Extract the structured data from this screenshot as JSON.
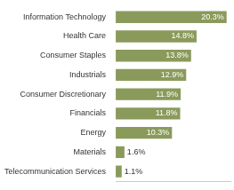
{
  "chart_data": {
    "type": "bar",
    "orientation": "horizontal",
    "categories": [
      "Information Technology",
      "Health Care",
      "Consumer Staples",
      "Industrials",
      "Consumer Discretionary",
      "Financials",
      "Energy",
      "Materials",
      "Telecommunication Services"
    ],
    "values": [
      20.3,
      14.8,
      13.8,
      12.9,
      11.9,
      11.8,
      10.3,
      1.6,
      1.1
    ],
    "value_labels": [
      "20.3%",
      "14.8%",
      "13.8%",
      "12.9%",
      "11.9%",
      "11.8%",
      "10.3%",
      "1.6%",
      "1.1%"
    ],
    "color": "#8a9a5b",
    "xlim": [
      0,
      21
    ],
    "grid": false,
    "data_labels": true,
    "tick_labels": "y"
  }
}
